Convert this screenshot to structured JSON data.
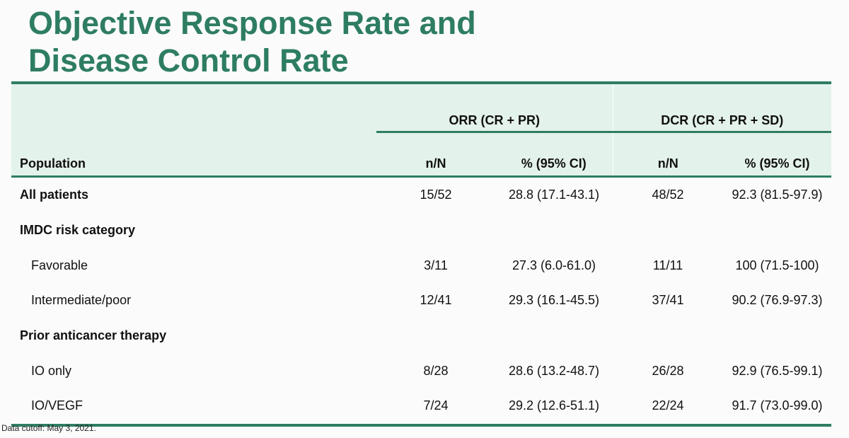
{
  "title": {
    "line1": "Objective Response Rate and",
    "line2": "Disease Control Rate"
  },
  "table": {
    "group_headers": {
      "orr": "ORR (CR + PR)",
      "dcr": "DCR (CR + PR + SD)"
    },
    "column_headers": {
      "population": "Population",
      "orr_n": "n/N",
      "orr_pct": "% (95% CI)",
      "dcr_n": "n/N",
      "dcr_pct": "% (95% CI)"
    },
    "rows": [
      {
        "label": "All patients",
        "orr_n": "15/52",
        "orr_pct": "28.8 (17.1-43.1)",
        "dcr_n": "48/52",
        "dcr_pct": "92.3 (81.5-97.9)"
      },
      {
        "label": "IMDC risk category",
        "orr_n": "",
        "orr_pct": "",
        "dcr_n": "",
        "dcr_pct": ""
      },
      {
        "label": "Favorable",
        "orr_n": "3/11",
        "orr_pct": "27.3 (6.0-61.0)",
        "dcr_n": "11/11",
        "dcr_pct": "100 (71.5-100)"
      },
      {
        "label": "Intermediate/poor",
        "orr_n": "12/41",
        "orr_pct": "29.3 (16.1-45.5)",
        "dcr_n": "37/41",
        "dcr_pct": "90.2 (76.9-97.3)"
      },
      {
        "label": "Prior anticancer therapy",
        "orr_n": "",
        "orr_pct": "",
        "dcr_n": "",
        "dcr_pct": ""
      },
      {
        "label": "IO only",
        "orr_n": "8/28",
        "orr_pct": "28.6 (13.2-48.7)",
        "dcr_n": "26/28",
        "dcr_pct": "92.9 (76.5-99.1)"
      },
      {
        "label": "IO/VEGF",
        "orr_n": "7/24",
        "orr_pct": "29.2 (12.6-51.1)",
        "dcr_n": "22/24",
        "dcr_pct": "91.7 (73.0-99.0)"
      }
    ]
  },
  "footnote": "Data cutoff: May 3, 2021.",
  "colors": {
    "accent": "#2e7d63",
    "header_fill": "#e3f2ea"
  }
}
